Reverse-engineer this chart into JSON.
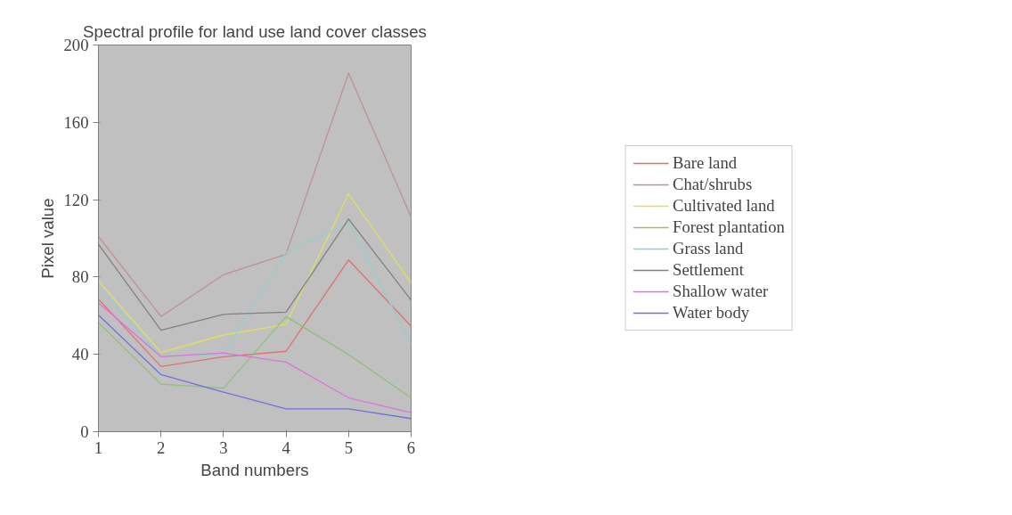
{
  "chart_data": {
    "type": "line",
    "title": "Spectral profile for land use land cover classes",
    "xlabel": "Band numbers",
    "ylabel": "Pixel value",
    "x": [
      1,
      2,
      3,
      4,
      5,
      6
    ],
    "xlim": [
      1,
      6
    ],
    "xticks": [
      1,
      2,
      3,
      4,
      5,
      6
    ],
    "ylim": [
      0,
      200
    ],
    "yticks": [
      0,
      40,
      80,
      120,
      160,
      200
    ],
    "grid": false,
    "legend": "right",
    "marker": "none",
    "line_style": "solid",
    "series": [
      {
        "name": "Bare land",
        "color": "#e07070",
        "values": [
          68.6,
          33.7,
          38.8,
          41.6,
          88.8,
          54.6
        ]
      },
      {
        "name": "Chat/shrubs",
        "color": "#c09090",
        "values": [
          101,
          59.6,
          81.2,
          91.8,
          185.5,
          111
        ]
      },
      {
        "name": "Cultivated land",
        "color": "#e0e060",
        "values": [
          78,
          41,
          50,
          55.5,
          123,
          77
        ]
      },
      {
        "name": "Forest plantation",
        "color": "#90c070",
        "values": [
          56.5,
          24.6,
          22.5,
          59.5,
          39.9,
          17.5
        ]
      },
      {
        "name": "Grass land",
        "color": "#90d0d0",
        "values": [
          75,
          39,
          40,
          92.7,
          108,
          45.7
        ]
      },
      {
        "name": "Settlement",
        "color": "#808080",
        "values": [
          97,
          52.5,
          60.7,
          61.8,
          110,
          68
        ]
      },
      {
        "name": "Shallow water",
        "color": "#e070e0",
        "values": [
          66.7,
          38.8,
          40.7,
          36,
          17.5,
          9.8
        ]
      },
      {
        "name": "Water body",
        "color": "#7070e0",
        "values": [
          60.4,
          29.5,
          20.5,
          11.8,
          11.8,
          6.8
        ]
      }
    ]
  }
}
